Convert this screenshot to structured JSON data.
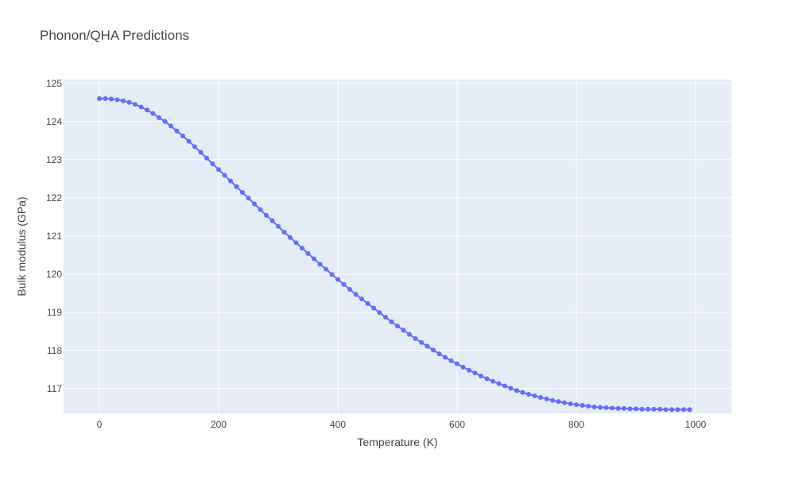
{
  "chart_data": {
    "type": "scatter",
    "mode": "lines+markers",
    "title": "Phonon/QHA Predictions",
    "xlabel": "Temperature (K)",
    "ylabel": "Bulk modulus (GPa)",
    "xlim": [
      -60,
      1060
    ],
    "ylim": [
      116.35,
      125.1
    ],
    "x_ticks": [
      0,
      200,
      400,
      600,
      800,
      1000
    ],
    "y_ticks": [
      117,
      118,
      119,
      120,
      121,
      122,
      123,
      124,
      125
    ],
    "grid": true,
    "legend": "none",
    "colors": {
      "plot_bg": "#e5ecf6",
      "grid": "#ffffff",
      "series": "#636efa"
    },
    "series": [
      {
        "x": [
          0,
          10,
          20,
          30,
          40,
          50,
          60,
          70,
          80,
          90,
          100,
          110,
          120,
          130,
          140,
          150,
          160,
          170,
          180,
          190,
          200,
          210,
          220,
          230,
          240,
          250,
          260,
          270,
          280,
          290,
          300,
          310,
          320,
          330,
          340,
          350,
          360,
          370,
          380,
          390,
          400,
          410,
          420,
          430,
          440,
          450,
          460,
          470,
          480,
          490,
          500,
          510,
          520,
          530,
          540,
          550,
          560,
          570,
          580,
          590,
          600,
          610,
          620,
          630,
          640,
          650,
          660,
          670,
          680,
          690,
          700,
          710,
          720,
          730,
          740,
          750,
          760,
          770,
          780,
          790,
          800,
          810,
          820,
          830,
          840,
          850,
          860,
          870,
          880,
          890,
          900,
          910,
          920,
          930,
          940,
          950,
          960,
          970,
          980,
          990
        ],
        "y": [
          124.6,
          124.6,
          124.59,
          124.57,
          124.54,
          124.5,
          124.45,
          124.38,
          124.3,
          124.21,
          124.1,
          124.0,
          123.88,
          123.75,
          123.62,
          123.48,
          123.34,
          123.19,
          123.04,
          122.89,
          122.74,
          122.59,
          122.44,
          122.29,
          122.14,
          121.99,
          121.84,
          121.69,
          121.54,
          121.4,
          121.25,
          121.1,
          120.96,
          120.82,
          120.68,
          120.54,
          120.4,
          120.26,
          120.13,
          119.99,
          119.86,
          119.73,
          119.6,
          119.47,
          119.35,
          119.23,
          119.11,
          118.99,
          118.87,
          118.75,
          118.64,
          118.53,
          118.42,
          118.31,
          118.21,
          118.11,
          118.01,
          117.91,
          117.82,
          117.73,
          117.65,
          117.56,
          117.48,
          117.41,
          117.33,
          117.26,
          117.19,
          117.13,
          117.07,
          117.01,
          116.95,
          116.9,
          116.85,
          116.81,
          116.77,
          116.73,
          116.69,
          116.66,
          116.63,
          116.6,
          116.58,
          116.56,
          116.54,
          116.52,
          116.51,
          116.5,
          116.49,
          116.48,
          116.48,
          116.47,
          116.47,
          116.46,
          116.46,
          116.46,
          116.46,
          116.45,
          116.45,
          116.45,
          116.45,
          116.45
        ]
      }
    ]
  }
}
